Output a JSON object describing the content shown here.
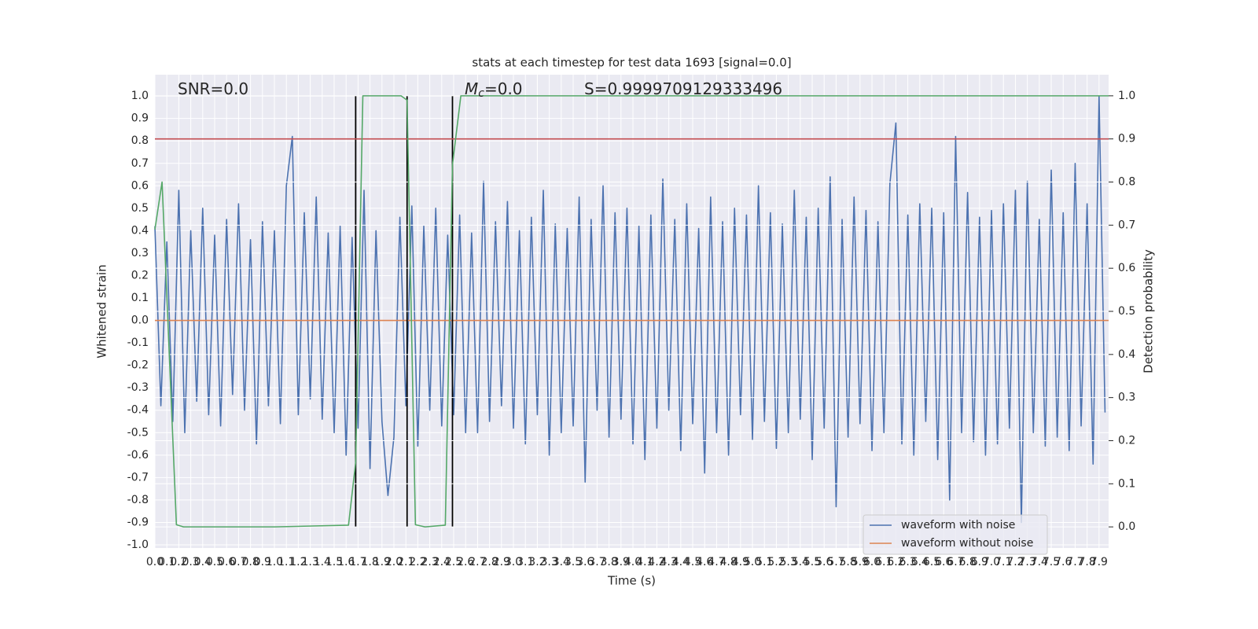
{
  "chart_data": {
    "type": "line",
    "title": "stats at each timestep for test data 1693 [signal=0.0]",
    "xlabel": "Time (s)",
    "ylabel": "Whitened strain",
    "y2label": "Detection probability",
    "grid": true,
    "legend": "lower right",
    "xlim": [
      0,
      7.98
    ],
    "ylim": [
      -1.014,
      1.095
    ],
    "y2lim": [
      -0.049,
      1.049
    ],
    "xticks": [
      {
        "value": 0,
        "label": "0.0"
      },
      0.1,
      0.2,
      0.3,
      0.4,
      0.5,
      0.6,
      0.7,
      0.8,
      0.9,
      {
        "value": 1,
        "label": "1.0"
      },
      1.1,
      1.2,
      1.3,
      1.4,
      1.5,
      1.6,
      1.7,
      1.8,
      1.9,
      {
        "value": 2,
        "label": "2.0"
      },
      2.1,
      2.2,
      2.3,
      2.4,
      2.5,
      2.6,
      2.7,
      2.8,
      2.9,
      {
        "value": 3,
        "label": "3.0"
      },
      3.1,
      3.2,
      3.3,
      3.4,
      3.5,
      3.6,
      3.7,
      3.8,
      3.9,
      {
        "value": 4,
        "label": "4.0"
      },
      4.1,
      4.2,
      4.3,
      4.4,
      4.5,
      4.6,
      4.7,
      4.8,
      4.9,
      {
        "value": 5,
        "label": "5.0"
      },
      5.1,
      5.2,
      5.3,
      5.4,
      5.5,
      5.6,
      5.7,
      5.8,
      5.9,
      {
        "value": 6,
        "label": "6.0"
      },
      6.1,
      6.2,
      6.3,
      6.4,
      6.5,
      6.6,
      6.7,
      6.8,
      6.9,
      {
        "value": 7,
        "label": "7.0"
      },
      7.1,
      7.2,
      7.3,
      7.4,
      7.5,
      7.6,
      7.7,
      7.8,
      7.9
    ],
    "yticks": [
      {
        "value": -1,
        "label": "-1.0"
      },
      -0.9,
      -0.8,
      -0.7,
      -0.6,
      -0.5,
      -0.4,
      -0.3,
      -0.2,
      -0.1,
      {
        "value": 0,
        "label": "0.0"
      },
      0.1,
      0.2,
      0.3,
      0.4,
      0.5,
      0.6,
      0.7,
      0.8,
      0.9,
      {
        "value": 1,
        "label": "1.0"
      }
    ],
    "y2ticks": [
      {
        "value": 0,
        "label": "0.0"
      },
      0.1,
      0.2,
      0.3,
      0.4,
      0.5,
      0.6,
      0.7,
      0.8,
      0.9,
      {
        "value": 1,
        "label": "1.0"
      }
    ],
    "annotations": [
      {
        "text": "SNR=0.0"
      },
      {
        "main": "M",
        "sub": "c",
        "text": "=0.0"
      },
      {
        "text": "S=0.9999709129333496"
      }
    ],
    "hlines": [
      {
        "value": 0.9,
        "axis": "y2",
        "color": "#c44e52"
      }
    ],
    "vlines": {
      "values": [
        1.68,
        2.11,
        2.49
      ],
      "color": "#000000"
    },
    "series": [
      {
        "name": "waveform with noise",
        "color": "#4c72b0",
        "x": [
          0,
          0.05,
          0.1,
          0.15,
          0.2,
          0.25,
          0.3,
          0.35,
          0.4,
          0.45,
          0.5,
          0.55,
          0.6,
          0.65,
          0.7,
          0.75,
          0.8,
          0.85,
          0.9,
          0.95,
          1,
          1.05,
          1.1,
          1.15,
          1.2,
          1.25,
          1.3,
          1.35,
          1.4,
          1.45,
          1.5,
          1.55,
          1.6,
          1.65,
          1.7,
          1.75,
          1.8,
          1.85,
          1.9,
          1.95,
          2,
          2.05,
          2.1,
          2.15,
          2.2,
          2.25,
          2.3,
          2.35,
          2.4,
          2.45,
          2.5,
          2.55,
          2.6,
          2.65,
          2.7,
          2.75,
          2.8,
          2.85,
          2.9,
          2.95,
          3,
          3.05,
          3.1,
          3.15,
          3.2,
          3.25,
          3.3,
          3.35,
          3.4,
          3.45,
          3.5,
          3.55,
          3.6,
          3.65,
          3.7,
          3.75,
          3.8,
          3.85,
          3.9,
          3.95,
          4,
          4.05,
          4.1,
          4.15,
          4.2,
          4.25,
          4.3,
          4.35,
          4.4,
          4.45,
          4.5,
          4.55,
          4.6,
          4.65,
          4.7,
          4.75,
          4.8,
          4.85,
          4.9,
          4.95,
          5,
          5.05,
          5.1,
          5.15,
          5.2,
          5.25,
          5.3,
          5.35,
          5.4,
          5.45,
          5.5,
          5.55,
          5.6,
          5.65,
          5.7,
          5.75,
          5.8,
          5.85,
          5.9,
          5.95,
          6,
          6.05,
          6.1,
          6.15,
          6.2,
          6.25,
          6.3,
          6.35,
          6.4,
          6.45,
          6.5,
          6.55,
          6.6,
          6.65,
          6.7,
          6.75,
          6.8,
          6.85,
          6.9,
          6.95,
          7,
          7.05,
          7.1,
          7.15,
          7.2,
          7.25,
          7.3,
          7.35,
          7.4,
          7.45,
          7.5,
          7.55,
          7.6,
          7.65,
          7.7,
          7.75,
          7.8,
          7.85,
          7.9,
          7.95
        ],
        "values": [
          0.42,
          -0.38,
          0.35,
          -0.45,
          0.58,
          -0.5,
          0.4,
          -0.36,
          0.5,
          -0.42,
          0.38,
          -0.47,
          0.45,
          -0.33,
          0.52,
          -0.4,
          0.36,
          -0.55,
          0.44,
          -0.38,
          0.4,
          -0.46,
          0.6,
          0.82,
          -0.42,
          0.48,
          -0.35,
          0.55,
          -0.44,
          0.39,
          -0.5,
          0.42,
          -0.6,
          0.37,
          -0.48,
          0.58,
          -0.66,
          0.4,
          -0.45,
          -0.78,
          -0.52,
          0.46,
          -0.38,
          0.51,
          -0.56,
          0.42,
          -0.4,
          0.5,
          -0.47,
          0.38,
          -0.42,
          0.47,
          -0.5,
          0.39,
          -0.5,
          0.62,
          -0.45,
          0.44,
          -0.38,
          0.53,
          -0.48,
          0.4,
          -0.55,
          0.46,
          -0.42,
          0.58,
          -0.6,
          0.43,
          -0.5,
          0.41,
          -0.47,
          0.55,
          -0.72,
          0.45,
          -0.4,
          0.6,
          -0.52,
          0.48,
          -0.44,
          0.5,
          -0.55,
          0.42,
          -0.62,
          0.47,
          -0.48,
          0.63,
          -0.4,
          0.45,
          -0.58,
          0.52,
          -0.46,
          0.41,
          -0.68,
          0.55,
          -0.5,
          0.44,
          -0.6,
          0.5,
          -0.42,
          0.47,
          -0.53,
          0.6,
          -0.45,
          0.48,
          -0.57,
          0.43,
          -0.5,
          0.58,
          -0.44,
          0.46,
          -0.62,
          0.5,
          -0.48,
          0.64,
          -0.83,
          0.45,
          -0.52,
          0.55,
          -0.46,
          0.49,
          -0.58,
          0.44,
          -0.5,
          0.61,
          0.88,
          -0.55,
          0.47,
          -0.6,
          0.52,
          -0.45,
          0.5,
          -0.62,
          0.48,
          -0.8,
          0.82,
          -0.5,
          0.57,
          -0.54,
          0.46,
          -0.6,
          0.49,
          -0.55,
          0.52,
          -0.48,
          0.58,
          -0.9,
          0.62,
          -0.5,
          0.45,
          -0.56,
          0.67,
          -0.52,
          0.48,
          -0.58,
          0.7,
          -0.47,
          0.52,
          -0.64,
          1.0,
          -0.41
        ]
      },
      {
        "name": "waveform without noise",
        "color": "#dd8452",
        "x": [
          0,
          7.98
        ],
        "values": [
          0,
          0
        ]
      },
      {
        "color": "#55a868",
        "axis": "y2",
        "x": [
          0,
          0.06,
          0.18,
          0.24,
          1.0,
          1.62,
          1.68,
          1.74,
          1.8,
          2.06,
          2.11,
          2.18,
          2.26,
          2.43,
          2.49,
          2.56,
          7.98
        ],
        "values": [
          0.69,
          0.8,
          0.005,
          0,
          0,
          0.004,
          0.15,
          1,
          1,
          1,
          0.99,
          0.005,
          0,
          0.004,
          0.84,
          1,
          1
        ]
      }
    ]
  }
}
